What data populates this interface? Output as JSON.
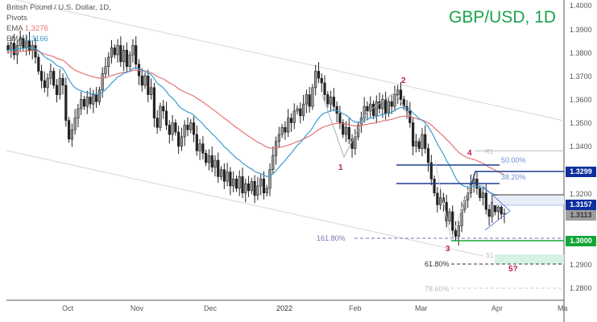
{
  "legend": {
    "symbol": "British Pound / U.S. Dollar, 1D,",
    "pivots": "Pivots",
    "ema1_label": "EMA",
    "ema1_value": "1.3276",
    "ema2_label": "EMA",
    "ema2_value": "1.3166"
  },
  "title": "GBP/USD, 1D",
  "colors": {
    "ema_slow": "#e57373",
    "ema_fast": "#3d9bd1",
    "title": "#1aa34a",
    "fib_blue": "#1e3f8f",
    "tag_blue": "#0d2f9e",
    "tag_gray": "#9e9e9e",
    "tag_green": "#13a538",
    "wave": "#c2185b",
    "channel": "#d6d6d6"
  },
  "price_axis": {
    "ticks": [
      "1.4000",
      "1.3900",
      "1.3800",
      "1.3700",
      "1.3600",
      "1.3500",
      "1.3400",
      "1.3200",
      "1.2900",
      "1.2800"
    ]
  },
  "price_tags": [
    {
      "value": "1.3299",
      "kind": "blue"
    },
    {
      "value": "1.3157",
      "kind": "blue"
    },
    {
      "value": "1.3113",
      "kind": "gray"
    },
    {
      "value": "1.3000",
      "kind": "green"
    }
  ],
  "time_axis": {
    "labels": [
      "Oct",
      "Nov",
      "Dec",
      "2022",
      "Feb",
      "Mar",
      "Apr",
      "Ma"
    ]
  },
  "annotations": {
    "fib_50": "50.00%",
    "fib_382": "38.20%",
    "fib_1618": "161.80%",
    "fib_618": "61.80%",
    "fib_786": "78.60%",
    "pivot_r1": "R1",
    "pivot_s1": "S1",
    "wave1": "1",
    "wave2": "2",
    "wave3": "3",
    "wave4": "4",
    "wave5": "5?"
  },
  "chart_data": {
    "type": "candlestick",
    "title": "GBP/USD, 1D",
    "subtitle": "British Pound / U.S. Dollar, 1D, Pivots",
    "xlabel": "",
    "ylabel": "",
    "ylim": [
      1.274,
      1.402
    ],
    "x_ticks": [
      "Oct",
      "Nov",
      "Dec",
      "2022",
      "Feb",
      "Mar",
      "Apr",
      "Ma"
    ],
    "y_ticks": [
      1.28,
      1.29,
      1.3,
      1.31,
      1.32,
      1.33,
      1.34,
      1.35,
      1.36,
      1.37,
      1.38,
      1.39,
      1.4
    ],
    "indicators": [
      {
        "name": "EMA (slow)",
        "last": 1.3276,
        "color": "#e57373"
      },
      {
        "name": "EMA (fast)",
        "last": 1.3166,
        "color": "#3d9bd1"
      }
    ],
    "levels": [
      {
        "label": "R1",
        "price": 1.338
      },
      {
        "label": "50.00%",
        "price": 1.332
      },
      {
        "label": "1.3299",
        "price": 1.3299
      },
      {
        "label": "38.20%",
        "price": 1.3245
      },
      {
        "label": "1.3157",
        "price": 1.3157
      },
      {
        "label": "last 1.3113",
        "price": 1.3113
      },
      {
        "label": "161.80%",
        "price": 1.3003
      },
      {
        "label": "1.3000",
        "price": 1.3
      },
      {
        "label": "S1",
        "price": 1.294
      },
      {
        "label": "61.80%",
        "price": 1.2903
      },
      {
        "label": "78.60%",
        "price": 1.28
      }
    ],
    "waves": [
      {
        "label": "1",
        "price": 1.3358
      },
      {
        "label": "2",
        "price": 1.3645
      },
      {
        "label": "3",
        "price": 1.3
      },
      {
        "label": "4",
        "price": 1.3299
      },
      {
        "label": "5?",
        "price": 1.29
      }
    ],
    "closes": [
      1.381,
      1.384,
      1.379,
      1.383,
      1.386,
      1.382,
      1.385,
      1.381,
      1.383,
      1.378,
      1.372,
      1.368,
      1.365,
      1.369,
      1.372,
      1.366,
      1.362,
      1.369,
      1.366,
      1.351,
      1.343,
      1.347,
      1.352,
      1.356,
      1.36,
      1.357,
      1.361,
      1.358,
      1.362,
      1.359,
      1.364,
      1.371,
      1.374,
      1.378,
      1.382,
      1.379,
      1.383,
      1.376,
      1.381,
      1.374,
      1.379,
      1.383,
      1.375,
      1.37,
      1.366,
      1.37,
      1.362,
      1.365,
      1.352,
      1.348,
      1.357,
      1.355,
      1.349,
      1.345,
      1.35,
      1.346,
      1.34,
      1.344,
      1.349,
      1.347,
      1.35,
      1.345,
      1.338,
      1.341,
      1.337,
      1.333,
      1.336,
      1.331,
      1.334,
      1.327,
      1.33,
      1.325,
      1.329,
      1.323,
      1.326,
      1.322,
      1.327,
      1.32,
      1.324,
      1.321,
      1.325,
      1.319,
      1.323,
      1.326,
      1.32,
      1.322,
      1.33,
      1.336,
      1.342,
      1.345,
      1.348,
      1.346,
      1.352,
      1.35,
      1.355,
      1.356,
      1.353,
      1.358,
      1.362,
      1.357,
      1.365,
      1.372,
      1.369,
      1.367,
      1.362,
      1.358,
      1.361,
      1.357,
      1.354,
      1.35,
      1.345,
      1.348,
      1.343,
      1.339,
      1.344,
      1.349,
      1.352,
      1.357,
      1.355,
      1.358,
      1.353,
      1.359,
      1.356,
      1.36,
      1.354,
      1.359,
      1.357,
      1.362,
      1.364,
      1.36,
      1.357,
      1.355,
      1.35,
      1.34,
      1.342,
      1.339,
      1.345,
      1.339,
      1.333,
      1.326,
      1.32,
      1.315,
      1.318,
      1.316,
      1.308,
      1.312,
      1.304,
      1.3015,
      1.306,
      1.313,
      1.317,
      1.32,
      1.324,
      1.326,
      1.322,
      1.318,
      1.32,
      1.313,
      1.31,
      1.316,
      1.312,
      1.314,
      1.311,
      1.3113
    ]
  }
}
